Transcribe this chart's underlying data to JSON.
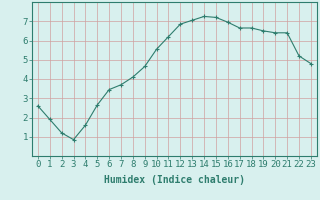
{
  "x": [
    0,
    1,
    2,
    3,
    4,
    5,
    6,
    7,
    8,
    9,
    10,
    11,
    12,
    13,
    14,
    15,
    16,
    17,
    18,
    19,
    20,
    21,
    22,
    23
  ],
  "y": [
    2.6,
    1.9,
    1.2,
    0.85,
    1.6,
    2.65,
    3.45,
    3.7,
    4.1,
    4.65,
    5.55,
    6.2,
    6.85,
    7.05,
    7.25,
    7.2,
    6.95,
    6.65,
    6.65,
    6.5,
    6.4,
    6.4,
    5.2,
    4.8
  ],
  "line_color": "#2e7d6e",
  "marker": "+",
  "marker_size": 3,
  "xlabel": "Humidex (Indice chaleur)",
  "xlim": [
    -0.5,
    23.5
  ],
  "ylim": [
    0,
    8
  ],
  "yticks": [
    1,
    2,
    3,
    4,
    5,
    6,
    7
  ],
  "xticks": [
    0,
    1,
    2,
    3,
    4,
    5,
    6,
    7,
    8,
    9,
    10,
    11,
    12,
    13,
    14,
    15,
    16,
    17,
    18,
    19,
    20,
    21,
    22,
    23
  ],
  "bg_color": "#d8f0ee",
  "grid_color": "#d0a0a0",
  "axis_color": "#2e7d6e",
  "tick_label_color": "#2e7d6e",
  "xlabel_color": "#2e7d6e",
  "xlabel_fontsize": 7,
  "tick_fontsize": 6.5
}
